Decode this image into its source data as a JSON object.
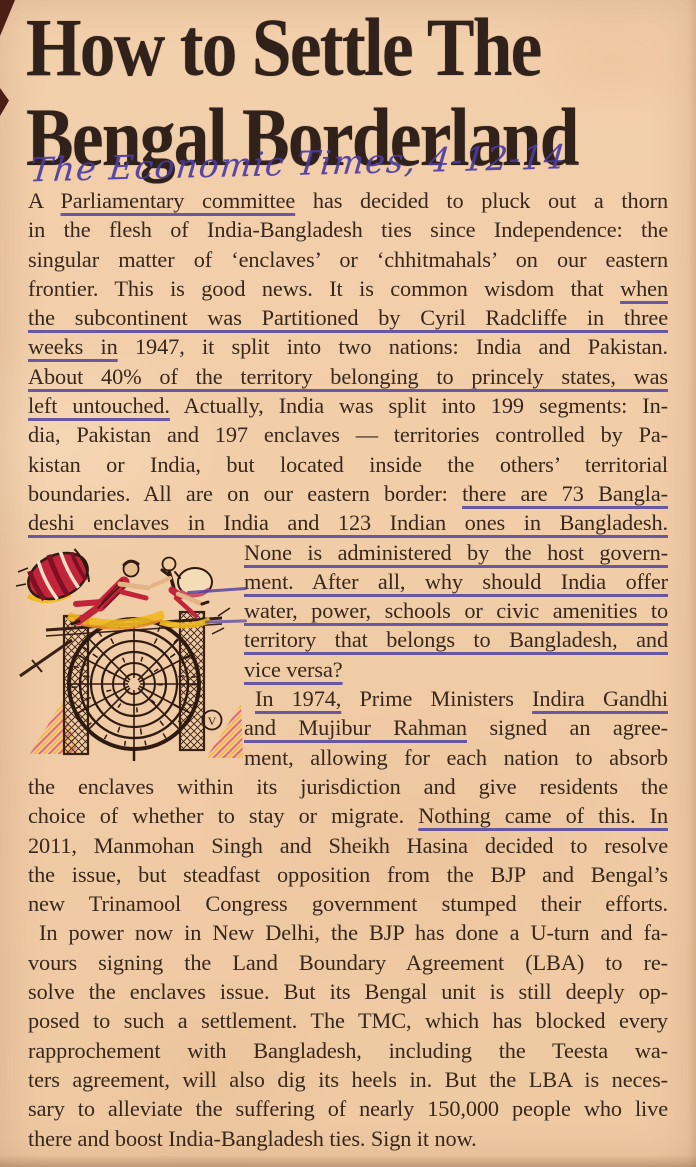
{
  "page": {
    "paper_color": "#f3d0ac",
    "body_ink": "#38271d",
    "headline_ink": "#30211a",
    "pen_ink": "#4c3da1"
  },
  "headline": {
    "line1": "How to Settle The",
    "line2": "Bengal Borderland"
  },
  "annotation": {
    "text": "The Economic Times, 4-12-14"
  },
  "illustration": {
    "description": "cartoon of two figures leaping over a barbed-wire spiral border fence with a bundle",
    "signature": "V"
  },
  "article": {
    "para1": [
      {
        "seg": [
          [
            "A ",
            0
          ],
          [
            "Parliamentary committee",
            1
          ],
          [
            " has decided to pluck out a thorn",
            0
          ]
        ],
        "j": 1,
        "ind": 0
      },
      {
        "seg": [
          [
            "in the flesh of India-Bangladesh ties since Independence: the",
            0
          ]
        ],
        "j": 1,
        "ind": 0
      },
      {
        "seg": [
          [
            "singular matter of ‘enclaves’ or ‘chhitmahals’ on our eastern",
            0
          ]
        ],
        "j": 1,
        "ind": 0
      },
      {
        "seg": [
          [
            "frontier. This is good news. It is common wisdom that ",
            0
          ],
          [
            "when",
            1
          ]
        ],
        "j": 1,
        "ind": 0
      },
      {
        "seg": [
          [
            "the subcontinent was Partitioned by Cyril Radcliffe in three",
            1
          ]
        ],
        "j": 1,
        "ind": 0
      },
      {
        "seg": [
          [
            "weeks in",
            1
          ],
          [
            " 1947, it split into two nations: India and Pakistan.",
            0
          ]
        ],
        "j": 1,
        "ind": 0
      },
      {
        "seg": [
          [
            "About 40% of the territory belonging to princely states, was",
            1
          ]
        ],
        "j": 1,
        "ind": 0
      },
      {
        "seg": [
          [
            "left untouched.",
            1
          ],
          [
            " Actually, India was split into 199 segments: In-",
            0
          ]
        ],
        "j": 1,
        "ind": 0
      },
      {
        "seg": [
          [
            "dia, Pakistan and 197 enclaves — territories controlled by Pa-",
            0
          ]
        ],
        "j": 1,
        "ind": 0
      },
      {
        "seg": [
          [
            "kistan or India, but located inside the others’ territorial",
            0
          ]
        ],
        "j": 1,
        "ind": 0
      },
      {
        "seg": [
          [
            "boundaries. All are on our eastern border: ",
            0
          ],
          [
            "there are 73 Bangla-",
            1
          ]
        ],
        "j": 1,
        "ind": 0
      },
      {
        "seg": [
          [
            "deshi enclaves in India and 123 Indian ones in Bangladesh.",
            1
          ]
        ],
        "j": 1,
        "ind": 0
      }
    ],
    "wrap": [
      {
        "seg": [
          [
            "None is administered by the host govern-",
            1
          ]
        ],
        "j": 1,
        "ind": 0
      },
      {
        "seg": [
          [
            "ment. After all, why should India offer",
            1
          ]
        ],
        "j": 1,
        "ind": 0
      },
      {
        "seg": [
          [
            "water, power, schools or civic amenities to",
            1
          ]
        ],
        "j": 1,
        "ind": 0
      },
      {
        "seg": [
          [
            "territory that belongs to Bangladesh, and",
            1
          ]
        ],
        "j": 1,
        "ind": 0
      },
      {
        "seg": [
          [
            "vice versa?",
            1
          ]
        ],
        "j": 0,
        "ind": 0
      },
      {
        "seg": [
          [
            "In 1974,",
            1
          ],
          [
            " Prime Ministers ",
            0
          ],
          [
            "Indira Gandhi",
            1
          ]
        ],
        "j": 1,
        "ind": 1
      },
      {
        "seg": [
          [
            "and Mujibur Rahman",
            1
          ],
          [
            " signed an agree-",
            0
          ]
        ],
        "j": 1,
        "ind": 0
      },
      {
        "seg": [
          [
            "ment, allowing for each nation to absorb",
            0
          ]
        ],
        "j": 1,
        "ind": 0
      }
    ],
    "para3": [
      {
        "seg": [
          [
            "the enclaves within its jurisdiction and give residents the",
            0
          ]
        ],
        "j": 1,
        "ind": 0
      },
      {
        "seg": [
          [
            "choice of whether to stay or migrate. ",
            0
          ],
          [
            "Nothing came of this. In",
            1
          ]
        ],
        "j": 1,
        "ind": 0
      },
      {
        "seg": [
          [
            "2011, Manmohan Singh and Sheikh Hasina decided to resolve",
            0
          ]
        ],
        "j": 1,
        "ind": 0
      },
      {
        "seg": [
          [
            "the issue, but steadfast opposition from the BJP and Bengal’s",
            0
          ]
        ],
        "j": 1,
        "ind": 0
      },
      {
        "seg": [
          [
            "new Trinamool Congress government stumped their efforts.",
            0
          ]
        ],
        "j": 1,
        "ind": 0
      }
    ],
    "para4": [
      {
        "seg": [
          [
            "In power now in New Delhi, the BJP has done a U-turn and fa-",
            0
          ]
        ],
        "j": 1,
        "ind": 1
      },
      {
        "seg": [
          [
            "vours signing the Land Boundary Agreement (LBA) to re-",
            0
          ]
        ],
        "j": 1,
        "ind": 0
      },
      {
        "seg": [
          [
            "solve the enclaves issue. But its Bengal unit is still deeply op-",
            0
          ]
        ],
        "j": 1,
        "ind": 0
      },
      {
        "seg": [
          [
            "posed to such a settlement. The TMC, which has blocked every",
            0
          ]
        ],
        "j": 1,
        "ind": 0
      },
      {
        "seg": [
          [
            "rapprochement with Bangladesh, including the Teesta wa-",
            0
          ]
        ],
        "j": 1,
        "ind": 0
      },
      {
        "seg": [
          [
            "ters agreement, will also dig its heels in. But the LBA is neces-",
            0
          ]
        ],
        "j": 1,
        "ind": 0
      },
      {
        "seg": [
          [
            "sary to alleviate the suffering of nearly 150,000 people who live",
            0
          ]
        ],
        "j": 1,
        "ind": 0
      },
      {
        "seg": [
          [
            "there and boost India-Bangladesh ties. Sign it now.",
            0
          ]
        ],
        "j": 0,
        "ind": 0
      }
    ]
  }
}
